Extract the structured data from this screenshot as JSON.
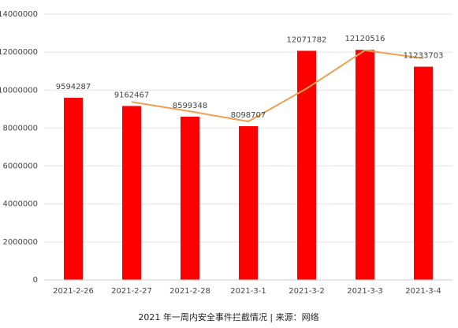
{
  "chart_data": {
    "type": "bar",
    "categories": [
      "2021-2-26",
      "2021-2-27",
      "2021-2-28",
      "2021-3-1",
      "2021-3-2",
      "2021-3-3",
      "2021-3-4"
    ],
    "values": [
      9594287,
      9162467,
      8599348,
      8098707,
      12071782,
      12120516,
      11233703
    ],
    "color": "#ff0000",
    "trend": {
      "color": "#f0a050",
      "values": [
        null,
        9378377,
        8880908,
        8349028,
        10085245,
        12096149,
        11677110
      ]
    },
    "ylim": [
      0,
      14000000
    ],
    "yticks": [
      0,
      2000000,
      4000000,
      6000000,
      8000000,
      10000000,
      12000000,
      14000000
    ],
    "grid": true,
    "caption": "2021 年一周内安全事件拦截情况 | 来源：网络"
  }
}
